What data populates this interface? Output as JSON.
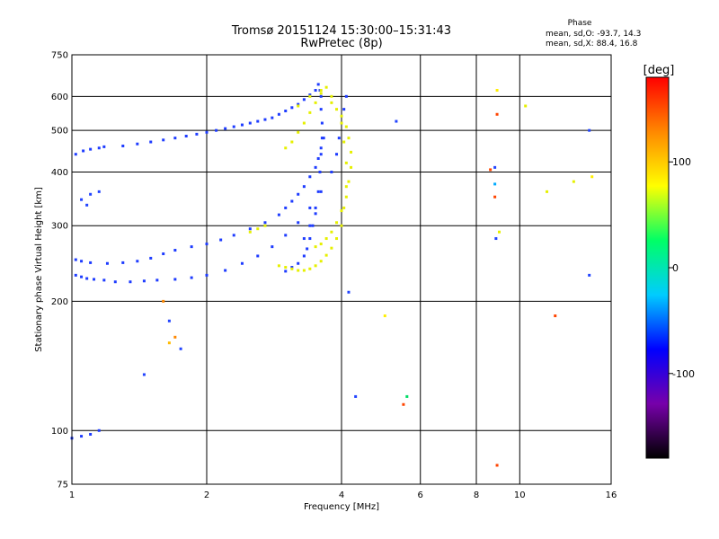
{
  "page": {
    "title_line1": "Tromsø 20151124 15:30:00–15:31:43",
    "title_line2": "RwPretec (8p)"
  },
  "phase_stats": {
    "heading": "Phase",
    "line1": "mean, sd,O: -93.7, 14.3",
    "line2": "mean, sd,X:  88.4, 16.8"
  },
  "colorbar": {
    "label": "[deg]",
    "ticks": [
      {
        "value": 100,
        "label": "100"
      },
      {
        "value": 0,
        "label": "0"
      },
      {
        "value": -100,
        "label": "-100"
      }
    ],
    "range": [
      -180,
      180
    ],
    "stops": [
      "#000000",
      "#7700aa",
      "#0000ff",
      "#00ccff",
      "#00ff66",
      "#ffff00",
      "#ff8800",
      "#ff0000"
    ]
  },
  "chart_data": {
    "type": "scatter",
    "xlabel": "Frequency [MHz]",
    "ylabel": "Stationary phase Virtual Height [km]",
    "xscale": "log",
    "yscale": "log",
    "xlim": [
      1,
      16
    ],
    "ylim": [
      75,
      750
    ],
    "grid": true,
    "xticks": [
      {
        "value": 1,
        "label": "1"
      },
      {
        "value": 2,
        "label": "2"
      },
      {
        "value": 4,
        "label": "4"
      },
      {
        "value": 6,
        "label": "6"
      },
      {
        "value": 8,
        "label": "8"
      },
      {
        "value": 10,
        "label": "10"
      },
      {
        "value": 16,
        "label": "16"
      }
    ],
    "yticks": [
      {
        "value": 75,
        "label": "75"
      },
      {
        "value": 100,
        "label": "100"
      },
      {
        "value": 200,
        "label": "200"
      },
      {
        "value": 300,
        "label": "300"
      },
      {
        "value": 400,
        "label": "400"
      },
      {
        "value": 500,
        "label": "500"
      },
      {
        "value": 600,
        "label": "600"
      },
      {
        "value": 750,
        "label": "750"
      }
    ],
    "point_colors": {
      "O": "#1e3cff",
      "X": "#e6f000"
    },
    "series": [
      {
        "mode": "O",
        "x": [
          1.02,
          1.05,
          1.08,
          1.12,
          1.18,
          1.25,
          1.35,
          1.45,
          1.55,
          1.7,
          1.85,
          2.0,
          2.2,
          2.4,
          2.6,
          2.8,
          3.0,
          3.2,
          3.4,
          3.6,
          3.8,
          3.9,
          3.95,
          4.0,
          4.05,
          4.1,
          1.02,
          1.05,
          1.1,
          1.2,
          1.3,
          1.4,
          1.5,
          1.6,
          1.7,
          1.85,
          2.0,
          2.15,
          2.3,
          2.5,
          2.7,
          2.9,
          3.0,
          3.1,
          3.2,
          3.3,
          3.4,
          3.5,
          3.55,
          3.6,
          3.65,
          1.02,
          1.06,
          1.1,
          1.15,
          1.18,
          1.0,
          1.05,
          1.1,
          1.15,
          1.3,
          1.4,
          1.5,
          1.6,
          1.7,
          1.8,
          1.9,
          2.0,
          2.1,
          2.2,
          2.3,
          2.4,
          2.5,
          2.6,
          2.7,
          2.8,
          2.9,
          3.0,
          3.1,
          3.2,
          3.3,
          3.4,
          3.5,
          3.55,
          3.58,
          3.6,
          3.6,
          3.62,
          3.62,
          3.6,
          3.58,
          3.55,
          3.5,
          3.45,
          3.4,
          3.35,
          3.3,
          3.2,
          3.1,
          3.0,
          3.3,
          3.4,
          3.5
        ],
        "y": [
          230,
          228,
          226,
          225,
          224,
          222,
          222,
          223,
          224,
          225,
          227,
          230,
          236,
          245,
          255,
          268,
          285,
          305,
          330,
          360,
          400,
          440,
          480,
          520,
          560,
          600,
          250,
          248,
          246,
          245,
          246,
          248,
          252,
          258,
          263,
          268,
          272,
          278,
          285,
          295,
          305,
          318,
          330,
          342,
          355,
          370,
          390,
          410,
          430,
          455,
          480,
          440,
          448,
          452,
          455,
          458,
          96,
          97,
          98,
          100,
          460,
          465,
          470,
          475,
          480,
          485,
          490,
          495,
          500,
          505,
          510,
          515,
          520,
          525,
          530,
          535,
          545,
          555,
          565,
          575,
          590,
          605,
          620,
          640,
          620,
          600,
          560,
          520,
          480,
          440,
          400,
          360,
          330,
          300,
          280,
          265,
          255,
          245,
          240,
          235,
          280,
          300,
          320
        ]
      },
      {
        "mode": "X",
        "x": [
          2.9,
          3.0,
          3.1,
          3.2,
          3.3,
          3.4,
          3.5,
          3.6,
          3.7,
          3.8,
          3.9,
          4.0,
          4.05,
          4.1,
          4.1,
          4.05,
          4.0,
          3.9,
          3.8,
          3.7,
          3.6,
          3.5,
          3.4,
          3.3,
          3.2,
          3.1,
          3.0,
          2.5,
          2.6,
          2.7,
          3.5,
          3.6,
          3.7,
          3.8,
          3.9,
          4.0,
          4.1,
          4.15,
          4.2,
          4.2,
          4.15,
          4.1,
          4.0,
          3.8,
          3.6,
          3.4,
          3.2,
          9.0,
          10.3,
          11.5,
          13.2
        ],
        "y": [
          242,
          240,
          238,
          236,
          236,
          238,
          242,
          248,
          256,
          266,
          280,
          300,
          330,
          370,
          420,
          470,
          520,
          560,
          600,
          630,
          610,
          580,
          550,
          520,
          495,
          470,
          455,
          290,
          295,
          300,
          268,
          272,
          280,
          290,
          305,
          325,
          350,
          380,
          410,
          445,
          480,
          510,
          540,
          580,
          620,
          600,
          570,
          290,
          570,
          360,
          380
        ]
      },
      {
        "mode": "scattered",
        "x": [
          1.05,
          1.08,
          1.1,
          1.15,
          1.6,
          1.65,
          1.65,
          1.7,
          1.75,
          4.15,
          4.3,
          5.0,
          5.5,
          5.6,
          5.3,
          8.6,
          8.8,
          8.8,
          8.8,
          8.9,
          8.9,
          8.85,
          8.9,
          12.0,
          14.3,
          14.3,
          14.5,
          1.45
        ],
        "y": [
          345,
          335,
          355,
          360,
          200,
          180,
          160,
          165,
          155,
          210,
          120,
          185,
          115,
          120,
          525,
          405,
          410,
          375,
          350,
          545,
          620,
          280,
          83,
          185,
          500,
          230,
          390,
          135
        ],
        "colors": [
          "#2244ff",
          "#2244ff",
          "#2244ff",
          "#2244ff",
          "#ff8800",
          "#2244ff",
          "#ffbb00",
          "#ff8800",
          "#2244ff",
          "#2244ff",
          "#2244ff",
          "#ffee00",
          "#ff4400",
          "#00dd66",
          "#2244ff",
          "#ff4400",
          "#2244ff",
          "#00aaff",
          "#ff4400",
          "#ff4400",
          "#ffee00",
          "#2244ff",
          "#ff4400",
          "#ff4400",
          "#2244ff",
          "#2244ff",
          "#ffee00",
          "#2244ff"
        ]
      }
    ]
  }
}
